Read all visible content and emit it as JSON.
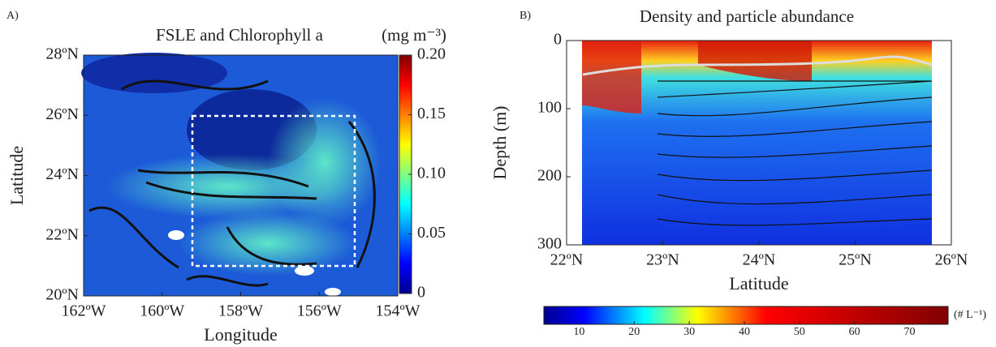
{
  "chart_data": [
    {
      "type": "heatmap",
      "panel_label": "A)",
      "title": "FSLE and Chlorophyll a",
      "x_label": "Longitude",
      "y_label": "Latitude",
      "xlim": [
        -162,
        -154
      ],
      "xticks": [
        {
          "value": -162,
          "label": "162ºW"
        },
        {
          "value": -160,
          "label": "160ºW"
        },
        {
          "value": -158,
          "label": "158ºW"
        },
        {
          "value": -156,
          "label": "156ºW"
        },
        {
          "value": -154,
          "label": "154ºW"
        }
      ],
      "ylim": [
        20,
        28
      ],
      "yticks": [
        {
          "value": 20,
          "label": "20ºN"
        },
        {
          "value": 22,
          "label": "22ºN"
        },
        {
          "value": 24,
          "label": "24ºN"
        },
        {
          "value": 26,
          "label": "26ºN"
        },
        {
          "value": 28,
          "label": "28ºN"
        }
      ],
      "colorbar_label": "(mg m⁻³)",
      "colorbar_orientation": "vertical",
      "clim": [
        0,
        0.2
      ],
      "cticks": [
        0,
        0.05,
        {
          "value": 0.1,
          "label": "0.10"
        },
        0.15,
        {
          "value": 0.2,
          "label": "0.20"
        }
      ]
    },
    {
      "type": "heatmap",
      "panel_label": "B)",
      "title": "Density and particle abundance",
      "x_label": "Latitude",
      "y_label": "Depth (m)",
      "xlim": [
        22,
        26
      ],
      "xticks": [
        {
          "value": 22,
          "label": "22ºN"
        },
        {
          "value": 23,
          "label": "23ºN"
        },
        {
          "value": 24,
          "label": "24ºN"
        },
        {
          "value": 25,
          "label": "25ºN"
        },
        {
          "value": 26,
          "label": "26ºN"
        }
      ],
      "ylim": [
        300,
        0
      ],
      "yticks": [
        0,
        100,
        200,
        300
      ],
      "colorbar_label": "(# L⁻¹)",
      "colorbar_orientation": "horizontal",
      "clim": [
        3.6,
        77
      ],
      "cticks": [
        10,
        20,
        30,
        40,
        50,
        60,
        70
      ]
    }
  ]
}
